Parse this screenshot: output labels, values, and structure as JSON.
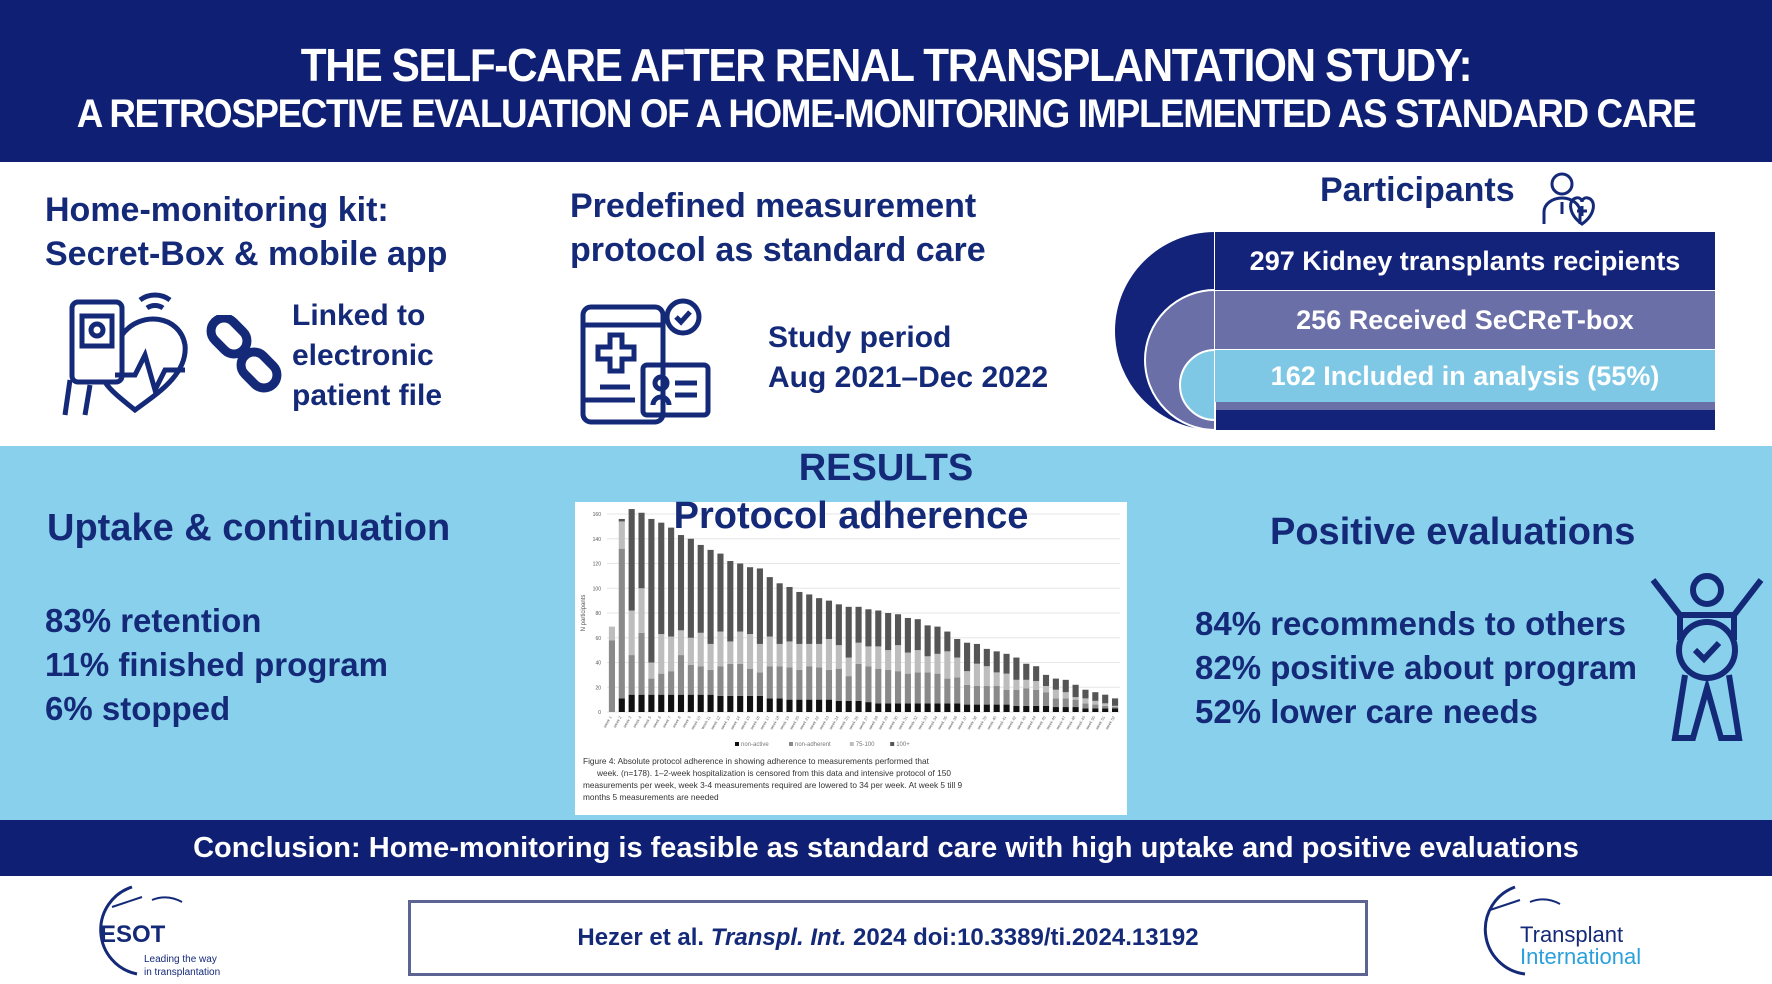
{
  "header": {
    "title_line1": "THE SELF-CARE AFTER RENAL TRANSPLANTATION STUDY:",
    "title_line2": "A RETROSPECTIVE EVALUATION OF A HOME-MONITORING IMPLEMENTED AS STANDARD CARE"
  },
  "kit": {
    "title_line1": "Home-monitoring kit:",
    "title_line2": "Secret-Box & mobile app",
    "linked": [
      "Linked to",
      "electronic",
      "patient file"
    ],
    "icons": [
      "phone-heart-icon",
      "link-chain-icon"
    ]
  },
  "protocol": {
    "title_line1": "Predefined measurement",
    "title_line2": "protocol as standard care",
    "period_label": "Study period",
    "period_value": "Aug 2021–Dec 2022",
    "icons": [
      "tablet-medical-icon"
    ]
  },
  "participants": {
    "title": "Participants",
    "icon": "doctor-heart-icon",
    "rows": [
      "297 Kidney transplants recipients",
      "256 Received SeCReT-box",
      "162 Included in analysis (55%)"
    ],
    "colors": [
      "#14237a",
      "#6a6fa8",
      "#7ec8e6"
    ]
  },
  "results": {
    "title": "RESULTS",
    "uptake": {
      "title": "Uptake & continuation",
      "items": [
        "83% retention",
        "11% finished program",
        "6% stopped"
      ]
    },
    "adherence_title": "Protocol adherence",
    "positive": {
      "title": "Positive evaluations",
      "items": [
        "84% recommends to others",
        "82% positive about program",
        "52% lower care needs"
      ],
      "icon": "happy-person-check-icon"
    }
  },
  "chart_data": {
    "type": "bar",
    "stacked": true,
    "ylabel": "N participants",
    "ylim": [
      0,
      160
    ],
    "yticks": [
      0,
      20,
      40,
      60,
      80,
      100,
      120,
      140,
      160
    ],
    "categories": [
      "week 1",
      "week 2",
      "week 3",
      "week 4",
      "week 5",
      "week 6",
      "week 7",
      "week 8",
      "week 9",
      "week 10",
      "week 11",
      "week 12",
      "week 13",
      "week 14",
      "week 15",
      "week 16",
      "week 17",
      "week 18",
      "week 19",
      "week 20",
      "week 21",
      "week 22",
      "week 23",
      "week 24",
      "week 25",
      "week 26",
      "week 27",
      "week 28",
      "week 29",
      "week 30",
      "week 31",
      "week 32",
      "week 33",
      "week 34",
      "week 35",
      "week 36",
      "week 37",
      "week 38",
      "week 39",
      "week 40",
      "week 41",
      "week 42",
      "week 43",
      "week 44",
      "week 45",
      "week 46",
      "week 47",
      "week 48",
      "week 49",
      "week 50",
      "week 51",
      "week 52"
    ],
    "series": [
      {
        "name": "non-active",
        "color": "#111111",
        "values": [
          0,
          11,
          14,
          14,
          14,
          14,
          14,
          14,
          14,
          14,
          14,
          13,
          13,
          13,
          13,
          13,
          11,
          11,
          10,
          10,
          10,
          10,
          10,
          9,
          9,
          9,
          8,
          7,
          7,
          7,
          7,
          7,
          7,
          7,
          7,
          7,
          6,
          6,
          6,
          6,
          6,
          5,
          5,
          5,
          5,
          4,
          4,
          4,
          3,
          3,
          3,
          3
        ]
      },
      {
        "name": "non-adherent",
        "color": "#8a8a8a",
        "values": [
          58,
          121,
          32,
          50,
          13,
          17,
          19,
          32,
          24,
          23,
          20,
          24,
          26,
          26,
          22,
          19,
          26,
          26,
          26,
          24,
          27,
          26,
          24,
          26,
          20,
          30,
          29,
          28,
          27,
          26,
          24,
          25,
          25,
          24,
          20,
          21,
          16,
          15,
          15,
          15,
          12,
          13,
          14,
          13,
          11,
          7,
          7,
          6,
          4,
          3,
          2,
          1
        ]
      },
      {
        "name": "75-100",
        "color": "#bdbdbd",
        "values": [
          11,
          22,
          36,
          36,
          13,
          32,
          28,
          20,
          22,
          27,
          21,
          28,
          18,
          26,
          28,
          23,
          24,
          18,
          21,
          21,
          18,
          19,
          25,
          19,
          15,
          17,
          16,
          18,
          16,
          21,
          17,
          18,
          13,
          16,
          22,
          16,
          11,
          18,
          16,
          11,
          13,
          8,
          7,
          7,
          5,
          7,
          5,
          2,
          4,
          3,
          2,
          1
        ]
      },
      {
        "name": "100+",
        "color": "#555555",
        "values": [
          0,
          2,
          82,
          61,
          116,
          90,
          88,
          77,
          80,
          71,
          76,
          63,
          65,
          55,
          54,
          61,
          48,
          49,
          44,
          42,
          40,
          37,
          31,
          33,
          41,
          29,
          30,
          29,
          30,
          25,
          28,
          25,
          25,
          22,
          16,
          15,
          23,
          16,
          14,
          17,
          16,
          18,
          13,
          12,
          9,
          9,
          10,
          10,
          7,
          7,
          7,
          6
        ]
      }
    ],
    "legend": "bottom",
    "caption": [
      "Figure 4:  Absolute protocol adherence in showing adherence to measurements performed that",
      "week. (n=178). 1–2-week hospitalization is censored from this data and intensive protocol of 150",
      "measurements per week,  week 3-4 measurements required are lowered to 34 per week. At week 5 till 9",
      "months 5 measurements are needed"
    ]
  },
  "conclusion": "Conclusion: Home-monitoring is feasible as standard care with high uptake and positive evaluations",
  "citation": {
    "authors": "Hezer et al.",
    "journal": "Transpl. Int.",
    "rest": "2024 doi:10.3389/ti.2024.13192"
  },
  "logos": {
    "esot": {
      "name": "ESOT",
      "tagline1": "Leading the way",
      "tagline2": "in transplantation"
    },
    "ti": {
      "line1": "Transplant",
      "line2": "International"
    }
  }
}
